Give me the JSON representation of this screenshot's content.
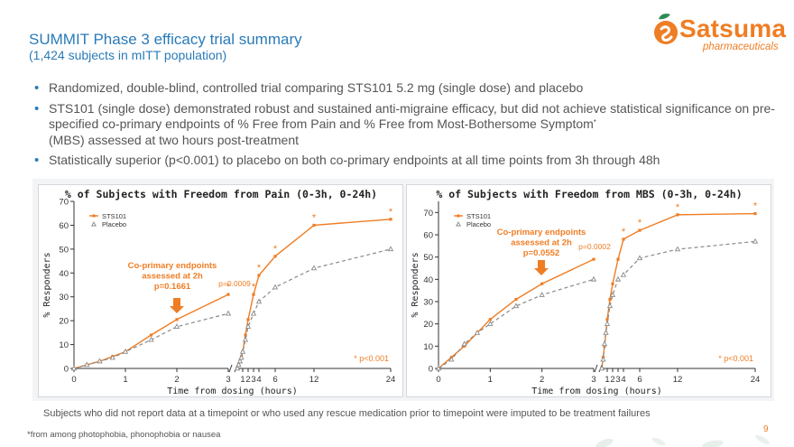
{
  "header": {
    "title": "SUMMIT Phase 3 efficacy trial summary",
    "subtitle": "(1,424 subjects in mITT population)"
  },
  "logo": {
    "name": "Satsuma",
    "sub": "pharmaceuticals"
  },
  "bullets": {
    "b1": "Randomized, double-blind, controlled trial comparing STS101 5.2 mg (single dose) and placebo",
    "b2": "STS101 (single dose) demonstrated robust and sustained anti-migraine efficacy, but did not achieve statistical significance on pre-specified co-primary endpoints of % Free from Pain and % Free from Most-Bothersome Symptom",
    "b2_sup": "*",
    "b2_end": "(MBS) assessed at two hours post-treatment",
    "b3": "Statistically superior (p<0.001) to placebo on both co-primary endpoints at all time points from 3h through 48h"
  },
  "colors": {
    "accent": "#ef7d24",
    "title_blue": "#2a7bb8",
    "placebo": "#8a8a8a"
  },
  "chart_data": [
    {
      "type": "line",
      "title": "% of Subjects with Freedom from Pain (0-3h, 0-24h)",
      "xlabel": "Time from dosing (hours)",
      "ylabel": "% Responders",
      "ylim": [
        0,
        70
      ],
      "yticks": [
        0,
        10,
        20,
        30,
        40,
        50,
        60,
        70
      ],
      "segments": [
        {
          "xlim": [
            0,
            3
          ],
          "ticks": [
            0,
            1,
            2,
            3
          ],
          "tick_labels": [
            "0",
            "1",
            "2",
            "3"
          ]
        },
        {
          "xlim": [
            0,
            24
          ],
          "ticks": [
            1,
            2,
            3,
            4,
            6,
            12,
            24
          ],
          "tick_labels": [
            "1",
            "2",
            "3",
            "4",
            "6",
            "12",
            "24"
          ]
        }
      ],
      "legend": [
        "STS101",
        "Placebo"
      ],
      "series": [
        {
          "name": "STS101",
          "segment0": [
            [
              0,
              0
            ],
            [
              0.25,
              1.5
            ],
            [
              0.5,
              3
            ],
            [
              0.75,
              5
            ],
            [
              1,
              7
            ],
            [
              1.5,
              14
            ],
            [
              2,
              20.5
            ],
            [
              3,
              31
            ]
          ],
          "segment1": [
            [
              0,
              0
            ],
            [
              0.25,
              1.5
            ],
            [
              0.5,
              3
            ],
            [
              0.75,
              5
            ],
            [
              1,
              7
            ],
            [
              1.5,
              14
            ],
            [
              2,
              20.5
            ],
            [
              3,
              31
            ],
            [
              4,
              39
            ],
            [
              6,
              47
            ],
            [
              12,
              60
            ],
            [
              24,
              62.5
            ]
          ]
        },
        {
          "name": "Placebo",
          "segment0": [
            [
              0,
              0
            ],
            [
              0.25,
              1.5
            ],
            [
              0.5,
              3
            ],
            [
              0.75,
              4.5
            ],
            [
              1,
              7
            ],
            [
              1.5,
              12
            ],
            [
              2,
              17.5
            ],
            [
              3,
              23
            ]
          ],
          "segment1": [
            [
              0,
              0
            ],
            [
              0.25,
              1.5
            ],
            [
              0.5,
              3
            ],
            [
              0.75,
              4.5
            ],
            [
              1,
              7
            ],
            [
              1.5,
              12
            ],
            [
              2,
              17.5
            ],
            [
              3,
              23
            ],
            [
              4,
              28
            ],
            [
              6,
              34
            ],
            [
              12,
              42
            ],
            [
              24,
              50
            ]
          ]
        }
      ],
      "significant_points_x": [
        3,
        4,
        6,
        12,
        24
      ],
      "annotation": {
        "lines": [
          "Co-primary endpoints",
          "assessed at 2h",
          "p=0.1661"
        ]
      },
      "pvalue_label": "p=0.0009",
      "significance_note": "* p<0.001"
    },
    {
      "type": "line",
      "title": "% of Subjects with Freedom from MBS (0-3h, 0-24h)",
      "xlabel": "Time from dosing (hours)",
      "ylabel": "% Responders",
      "ylim": [
        0,
        75
      ],
      "yticks": [
        0,
        10,
        20,
        30,
        40,
        50,
        60,
        70
      ],
      "segments": [
        {
          "xlim": [
            0,
            3
          ],
          "ticks": [
            0,
            1,
            2,
            3
          ],
          "tick_labels": [
            "0",
            "1",
            "2",
            "3"
          ]
        },
        {
          "xlim": [
            0,
            24
          ],
          "ticks": [
            1,
            2,
            3,
            4,
            6,
            12,
            24
          ],
          "tick_labels": [
            "1",
            "2",
            "3",
            "4",
            "6",
            "12",
            "24"
          ]
        }
      ],
      "legend": [
        "STS101",
        "Placebo"
      ],
      "series": [
        {
          "name": "STS101",
          "segment0": [
            [
              0,
              0
            ],
            [
              0.25,
              5
            ],
            [
              0.5,
              10
            ],
            [
              0.75,
              16
            ],
            [
              1,
              22
            ],
            [
              1.5,
              31
            ],
            [
              2,
              38
            ],
            [
              3,
              49
            ]
          ],
          "segment1": [
            [
              0,
              0
            ],
            [
              0.25,
              5
            ],
            [
              0.5,
              10
            ],
            [
              0.75,
              16
            ],
            [
              1,
              22
            ],
            [
              1.5,
              31
            ],
            [
              2,
              38
            ],
            [
              3,
              49
            ],
            [
              4,
              58
            ],
            [
              6,
              62
            ],
            [
              12,
              69
            ],
            [
              24,
              69.5
            ]
          ]
        },
        {
          "name": "Placebo",
          "segment0": [
            [
              0,
              0
            ],
            [
              0.25,
              4
            ],
            [
              0.5,
              11
            ],
            [
              0.75,
              16
            ],
            [
              1,
              20
            ],
            [
              1.5,
              28
            ],
            [
              2,
              33
            ],
            [
              3,
              40
            ]
          ],
          "segment1": [
            [
              0,
              0
            ],
            [
              0.25,
              4
            ],
            [
              0.5,
              11
            ],
            [
              0.75,
              16
            ],
            [
              1,
              20
            ],
            [
              1.5,
              28
            ],
            [
              2,
              33
            ],
            [
              3,
              40
            ],
            [
              4,
              42
            ],
            [
              6,
              49.5
            ],
            [
              12,
              53.5
            ],
            [
              24,
              57
            ]
          ]
        }
      ],
      "significant_points_x": [
        4,
        6,
        12,
        24
      ],
      "annotation": {
        "lines": [
          "Co-primary endpoints",
          "assessed at 2h",
          "p=0.0552"
        ]
      },
      "pvalue_label": "p=0.0002",
      "significance_note": "* p<0.001"
    }
  ],
  "footnotes": {
    "main": "Subjects who did not report data at a timepoint or who used any rescue medication prior to timepoint were imputed to be treatment failures",
    "star": "*from among photophobia, phonophobia or nausea"
  },
  "page": {
    "number": "9"
  }
}
